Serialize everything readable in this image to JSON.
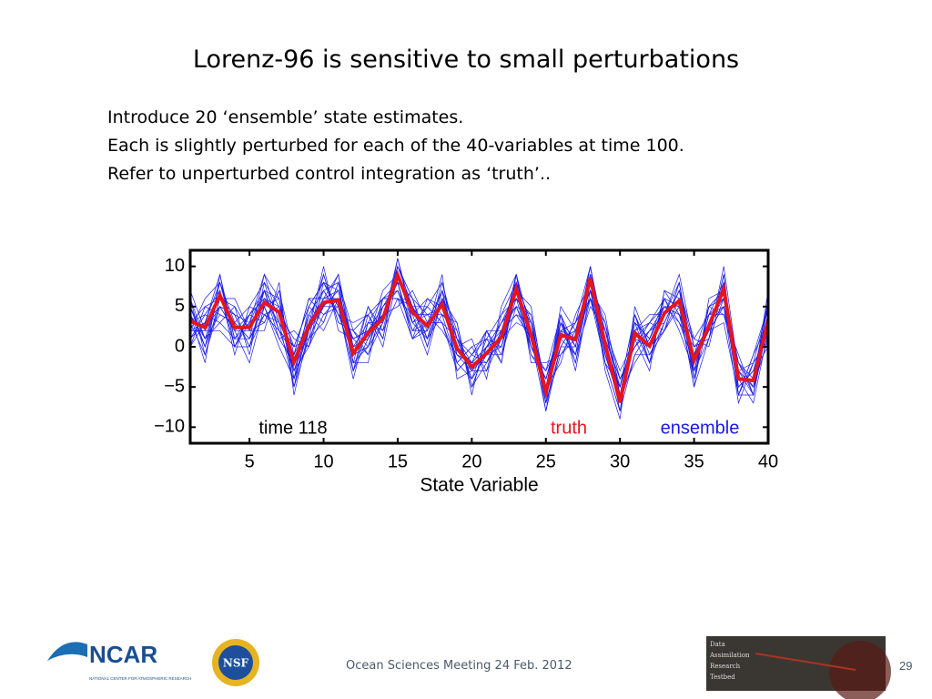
{
  "slide": {
    "title": "Lorenz-96 is sensitive to small perturbations",
    "lines": [
      "Introduce 20 ‘ensemble’ state estimates.",
      "Each is slightly perturbed for each of the 40-variables at time 100.",
      "Refer to unperturbed control integration as ‘truth’.."
    ],
    "footer": "Ocean Sciences Meeting 24 Feb. 2012",
    "page": "29",
    "ncar": "NCAR",
    "ncar_sub": "NATIONAL CENTER FOR ATMOSPHERIC RESEARCH",
    "nsf": "NSF",
    "dart": [
      "Data",
      "Assimilation",
      "Research",
      "Testbed"
    ]
  },
  "chart_data": {
    "type": "line",
    "x_label": "State Variable",
    "annotation": "time 118",
    "x": [
      1,
      2,
      3,
      4,
      5,
      6,
      7,
      8,
      9,
      10,
      11,
      12,
      13,
      14,
      15,
      16,
      17,
      18,
      19,
      20,
      21,
      22,
      23,
      24,
      25,
      26,
      27,
      28,
      29,
      30,
      31,
      32,
      33,
      34,
      35,
      36,
      37,
      38,
      39,
      40
    ],
    "xlim": [
      1,
      40
    ],
    "xticks": [
      5,
      10,
      15,
      20,
      25,
      30,
      35,
      40
    ],
    "ylim": [
      -12,
      12
    ],
    "yticks": [
      10,
      5,
      0,
      {
        "value": -5,
        "label": "−5"
      },
      {
        "value": -10,
        "label": "−10"
      }
    ],
    "grid": false,
    "ensemble": {
      "name": "ensemble",
      "color": "#1a1ae6",
      "members": [
        [
          5,
          0,
          8,
          1,
          4,
          3,
          7,
          -4,
          1,
          9,
          3,
          2,
          0,
          6,
          7,
          2,
          5,
          3,
          -3,
          -1,
          2,
          -2,
          9,
          0,
          -3,
          4,
          -2,
          6,
          3,
          -4,
          0,
          3,
          2,
          8,
          -4,
          5,
          4,
          -1,
          -6,
          6
        ],
        [
          1,
          4,
          3,
          5,
          -1,
          8,
          2,
          0,
          5,
          3,
          8,
          -3,
          4,
          1,
          10,
          6,
          0,
          7,
          2,
          -5,
          0,
          3,
          5,
          4,
          -7,
          0,
          3,
          7,
          -2,
          -5,
          4,
          -2,
          6,
          3,
          0,
          1,
          9,
          -6,
          -2,
          1
        ],
        [
          4,
          -2,
          9,
          0,
          3,
          5,
          6,
          -5,
          4,
          7,
          4,
          1,
          -1,
          5,
          8,
          1,
          6,
          4,
          -2,
          0,
          -3,
          4,
          8,
          -1,
          -4,
          3,
          0,
          10,
          1,
          -8,
          -1,
          2,
          3,
          7,
          -3,
          4,
          6,
          -3,
          -5,
          4
        ],
        [
          2,
          3,
          5,
          4,
          0,
          7,
          1,
          2,
          0,
          8,
          7,
          -2,
          5,
          2,
          6,
          5,
          1,
          8,
          1,
          -4,
          1,
          0,
          6,
          3,
          -5,
          -2,
          4,
          8,
          -1,
          -6,
          3,
          1,
          5,
          4,
          1,
          0,
          8,
          -5,
          -3,
          0
        ],
        [
          6,
          1,
          7,
          -1,
          5,
          4,
          5,
          -3,
          3,
          5,
          9,
          0,
          1,
          7,
          9,
          3,
          4,
          2,
          -1,
          -2,
          -2,
          2,
          4,
          1,
          -8,
          3,
          -1,
          5,
          2,
          -3,
          1,
          -3,
          7,
          6,
          -2,
          3,
          5,
          -2,
          -4,
          5
        ],
        [
          0,
          5,
          4,
          3,
          1,
          9,
          3,
          -1,
          6,
          4,
          5,
          -4,
          3,
          3,
          11,
          4,
          -1,
          6,
          3,
          -6,
          2,
          -1,
          7,
          5,
          -6,
          1,
          2,
          9,
          -3,
          -9,
          5,
          0,
          2,
          5,
          -5,
          6,
          7,
          -4,
          -7,
          2
        ],
        [
          3,
          -1,
          6,
          6,
          2,
          2,
          8,
          -6,
          2,
          10,
          2,
          1,
          2,
          4,
          5,
          7,
          3,
          5,
          0,
          1,
          -4,
          5,
          9,
          -2,
          -2,
          -1,
          1,
          6,
          0,
          -5,
          2,
          4,
          4,
          9,
          0,
          2,
          3,
          -6,
          -1,
          3
        ],
        [
          7,
          2,
          2,
          0,
          4,
          6,
          4,
          1,
          0,
          6,
          7,
          -2,
          -2,
          6,
          8,
          2,
          2,
          9,
          -4,
          -3,
          0,
          1,
          3,
          2,
          -7,
          4,
          -3,
          7,
          4,
          -6,
          -2,
          1,
          6,
          2,
          -3,
          1,
          10,
          -3,
          -5,
          7
        ],
        [
          2,
          6,
          8,
          2,
          -2,
          5,
          0,
          -4,
          5,
          8,
          4,
          3,
          4,
          0,
          9,
          5,
          5,
          3,
          1,
          -4,
          -1,
          3,
          6,
          0,
          -4,
          2,
          3,
          10,
          -1,
          -7,
          3,
          -2,
          3,
          7,
          1,
          4,
          5,
          -7,
          -2,
          1
        ],
        [
          4,
          0,
          5,
          4,
          3,
          7,
          6,
          -2,
          4,
          2,
          6,
          -1,
          0,
          5,
          7,
          3,
          1,
          6,
          -2,
          0,
          1,
          -2,
          8,
          3,
          -5,
          0,
          0,
          8,
          1,
          -4,
          0,
          2,
          5,
          4,
          -4,
          3,
          7,
          -2,
          -6,
          4
        ],
        [
          1,
          3,
          9,
          1,
          1,
          4,
          2,
          -3,
          2,
          7,
          8,
          0,
          3,
          2,
          10,
          6,
          4,
          4,
          2,
          -5,
          -2,
          2,
          5,
          1,
          -6,
          5,
          2,
          6,
          -2,
          -8,
          4,
          -1,
          2,
          6,
          -1,
          5,
          6,
          -5,
          -3,
          2
        ],
        [
          5,
          1,
          4,
          3,
          5,
          8,
          5,
          0,
          1,
          5,
          5,
          -3,
          1,
          4,
          8,
          1,
          2,
          7,
          -1,
          -2,
          0,
          0,
          7,
          -1,
          -3,
          1,
          -1,
          9,
          2,
          -6,
          1,
          0,
          4,
          8,
          -2,
          2,
          8,
          -4,
          -4,
          6
        ],
        [
          3,
          4,
          7,
          0,
          0,
          6,
          3,
          -5,
          3,
          9,
          3,
          2,
          4,
          6,
          6,
          4,
          6,
          5,
          0,
          -3,
          -3,
          1,
          9,
          2,
          -7,
          -1,
          2,
          7,
          0,
          -5,
          2,
          3,
          6,
          5,
          -3,
          4,
          4,
          -3,
          -6,
          3
        ],
        [
          2,
          2,
          6,
          5,
          2,
          3,
          7,
          -1,
          6,
          6,
          9,
          -2,
          0,
          3,
          9,
          5,
          0,
          6,
          1,
          -1,
          1,
          4,
          6,
          4,
          -5,
          3,
          -2,
          8,
          3,
          -7,
          -1,
          -1,
          3,
          7,
          0,
          1,
          9,
          -6,
          -1,
          5
        ],
        [
          6,
          -1,
          5,
          2,
          4,
          7,
          4,
          -3,
          0,
          4,
          6,
          1,
          2,
          5,
          7,
          2,
          3,
          3,
          -2,
          -4,
          -1,
          0,
          8,
          0,
          -4,
          2,
          1,
          10,
          -1,
          -6,
          3,
          1,
          5,
          3,
          -2,
          3,
          6,
          -2,
          -5,
          1
        ],
        [
          0,
          3,
          8,
          3,
          1,
          5,
          1,
          -2,
          4,
          7,
          4,
          -1,
          5,
          1,
          11,
          3,
          5,
          8,
          0,
          -2,
          2,
          2,
          4,
          3,
          -8,
          0,
          3,
          6,
          1,
          -4,
          0,
          2,
          4,
          6,
          -4,
          5,
          7,
          -5,
          -3,
          4
        ],
        [
          4,
          1,
          3,
          1,
          3,
          9,
          6,
          -4,
          2,
          5,
          7,
          0,
          1,
          4,
          8,
          6,
          1,
          4,
          3,
          -5,
          0,
          3,
          7,
          1,
          -5,
          4,
          0,
          9,
          -2,
          -8,
          2,
          -2,
          7,
          4,
          -1,
          2,
          5,
          -4,
          -4,
          2
        ],
        [
          3,
          5,
          6,
          4,
          0,
          4,
          3,
          0,
          5,
          8,
          5,
          -3,
          3,
          6,
          6,
          1,
          3,
          7,
          -3,
          -1,
          -2,
          1,
          9,
          2,
          -6,
          1,
          2,
          7,
          2,
          -5,
          4,
          0,
          2,
          8,
          -3,
          4,
          8,
          -3,
          -2,
          5
        ],
        [
          5,
          0,
          7,
          0,
          4,
          6,
          5,
          -5,
          1,
          3,
          8,
          2,
          -1,
          3,
          9,
          4,
          4,
          5,
          -1,
          -3,
          -1,
          -1,
          5,
          0,
          -4,
          2,
          -1,
          8,
          0,
          -6,
          1,
          3,
          5,
          5,
          -5,
          1,
          6,
          -6,
          -6,
          3
        ],
        [
          2,
          2,
          5,
          2,
          2,
          7,
          2,
          -1,
          3,
          6,
          6,
          -1,
          2,
          4,
          10,
          5,
          2,
          6,
          1,
          -2,
          0,
          2,
          8,
          3,
          -6,
          3,
          1,
          9,
          -1,
          -7,
          2,
          0,
          4,
          6,
          -1,
          3,
          7,
          -4,
          -4,
          3
        ]
      ]
    },
    "series": [
      {
        "name": "truth",
        "color": "#e8141c",
        "values": [
          3.2,
          2.4,
          6.4,
          2.4,
          2.4,
          5.5,
          4.3,
          -1.9,
          2.6,
          5.5,
          5.8,
          -0.8,
          1.7,
          3.5,
          8.9,
          4.3,
          2.6,
          5.3,
          -0.2,
          -2.5,
          -0.8,
          1.2,
          7.2,
          1.5,
          -5.6,
          1.5,
          0.9,
          8.5,
          0.3,
          -6.9,
          1.7,
          0.1,
          4.2,
          5.7,
          -1.7,
          2.6,
          7.2,
          -4,
          -4.2,
          3.2
        ]
      }
    ]
  }
}
